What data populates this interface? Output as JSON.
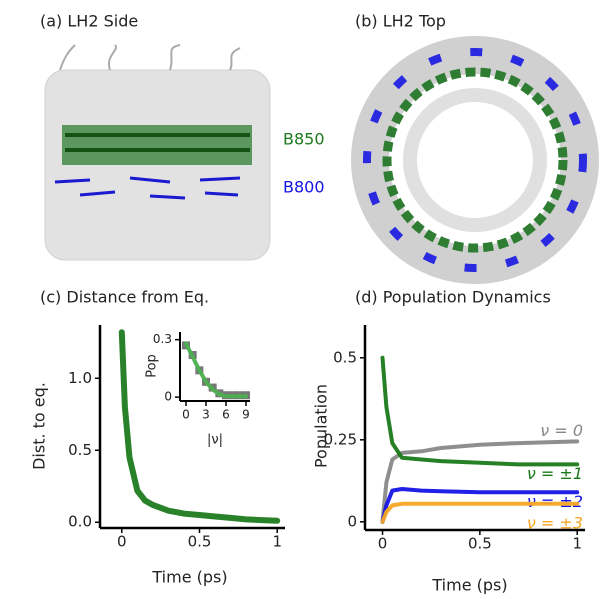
{
  "panels": [
    {
      "title": "(a) LH2 Side",
      "labels": [
        "B850",
        "B800"
      ]
    },
    {
      "title": "(b) LH2 Top"
    }
  ],
  "chart_data": [
    {
      "type": "line",
      "title": "(c) Distance from Eq.",
      "x_label": "Time (ps)",
      "y_label": "Dist. to eq.",
      "x": [
        0,
        0.02,
        0.05,
        0.1,
        0.15,
        0.2,
        0.3,
        0.4,
        0.5,
        0.6,
        0.7,
        0.8,
        0.9,
        1.0
      ],
      "series": [
        {
          "color": "#1e7a1e",
          "values": [
            1.32,
            0.8,
            0.45,
            0.22,
            0.15,
            0.12,
            0.08,
            0.06,
            0.05,
            0.04,
            0.03,
            0.02,
            0.015,
            0.01
          ]
        }
      ],
      "xlim": [
        -0.14,
        1.05
      ],
      "xticks": [
        0,
        0.5,
        1
      ],
      "ylim": [
        -0.04,
        1.37
      ],
      "yticks": [
        {
          "value": 0,
          "label": "0.0"
        },
        {
          "value": 0.5,
          "label": "0.5"
        },
        {
          "value": 1,
          "label": "1.0"
        }
      ]
    },
    {
      "type": "scatter",
      "x_label": "|ν|",
      "y_label": "Pop",
      "x": [
        0,
        1,
        2,
        3,
        4,
        5,
        6,
        7,
        8,
        9
      ],
      "series": [
        {
          "color": "#777777",
          "style": "markers",
          "values": [
            0.27,
            0.22,
            0.14,
            0.08,
            0.05,
            0.02,
            0.01,
            0.01,
            0.01,
            0.01
          ]
        },
        {
          "color": "#4caf50",
          "style": "line",
          "values": [
            0.28,
            0.21,
            0.14,
            0.08,
            0.04,
            0.015,
            0.005,
            0.005,
            0.005,
            0.005
          ]
        }
      ],
      "xlim": [
        -0.9,
        9.6
      ],
      "xticks": [
        0,
        3,
        6,
        9
      ],
      "ylim": [
        -0.02,
        0.34
      ],
      "yticks": [
        0,
        0.3
      ]
    },
    {
      "type": "line",
      "title": "(d) Population Dynamics",
      "x_label": "Time (ps)",
      "y_label": "Population",
      "x": [
        0,
        0.02,
        0.05,
        0.1,
        0.2,
        0.3,
        0.5,
        0.7,
        1.0
      ],
      "series": [
        {
          "name": "ν = 0",
          "color": "#888888",
          "values": [
            0,
            0.12,
            0.19,
            0.21,
            0.215,
            0.225,
            0.235,
            0.24,
            0.245
          ]
        },
        {
          "name": "ν = ±1",
          "color": "#1a7a1a",
          "values": [
            0.5,
            0.35,
            0.24,
            0.195,
            0.19,
            0.185,
            0.18,
            0.175,
            0.175
          ]
        },
        {
          "name": "ν = ±2",
          "color": "#1414e6",
          "values": [
            0,
            0.05,
            0.095,
            0.1,
            0.095,
            0.093,
            0.09,
            0.09,
            0.09
          ]
        },
        {
          "name": "ν = ±3",
          "color": "#f5a623",
          "values": [
            0,
            0.03,
            0.05,
            0.055,
            0.055,
            0.055,
            0.055,
            0.055,
            0.055
          ]
        }
      ],
      "xlim": [
        -0.09,
        1.04
      ],
      "xticks": [
        0,
        0.5,
        1
      ],
      "ylim": [
        -0.025,
        0.6
      ],
      "yticks": [
        0,
        0.25,
        0.5
      ]
    }
  ]
}
